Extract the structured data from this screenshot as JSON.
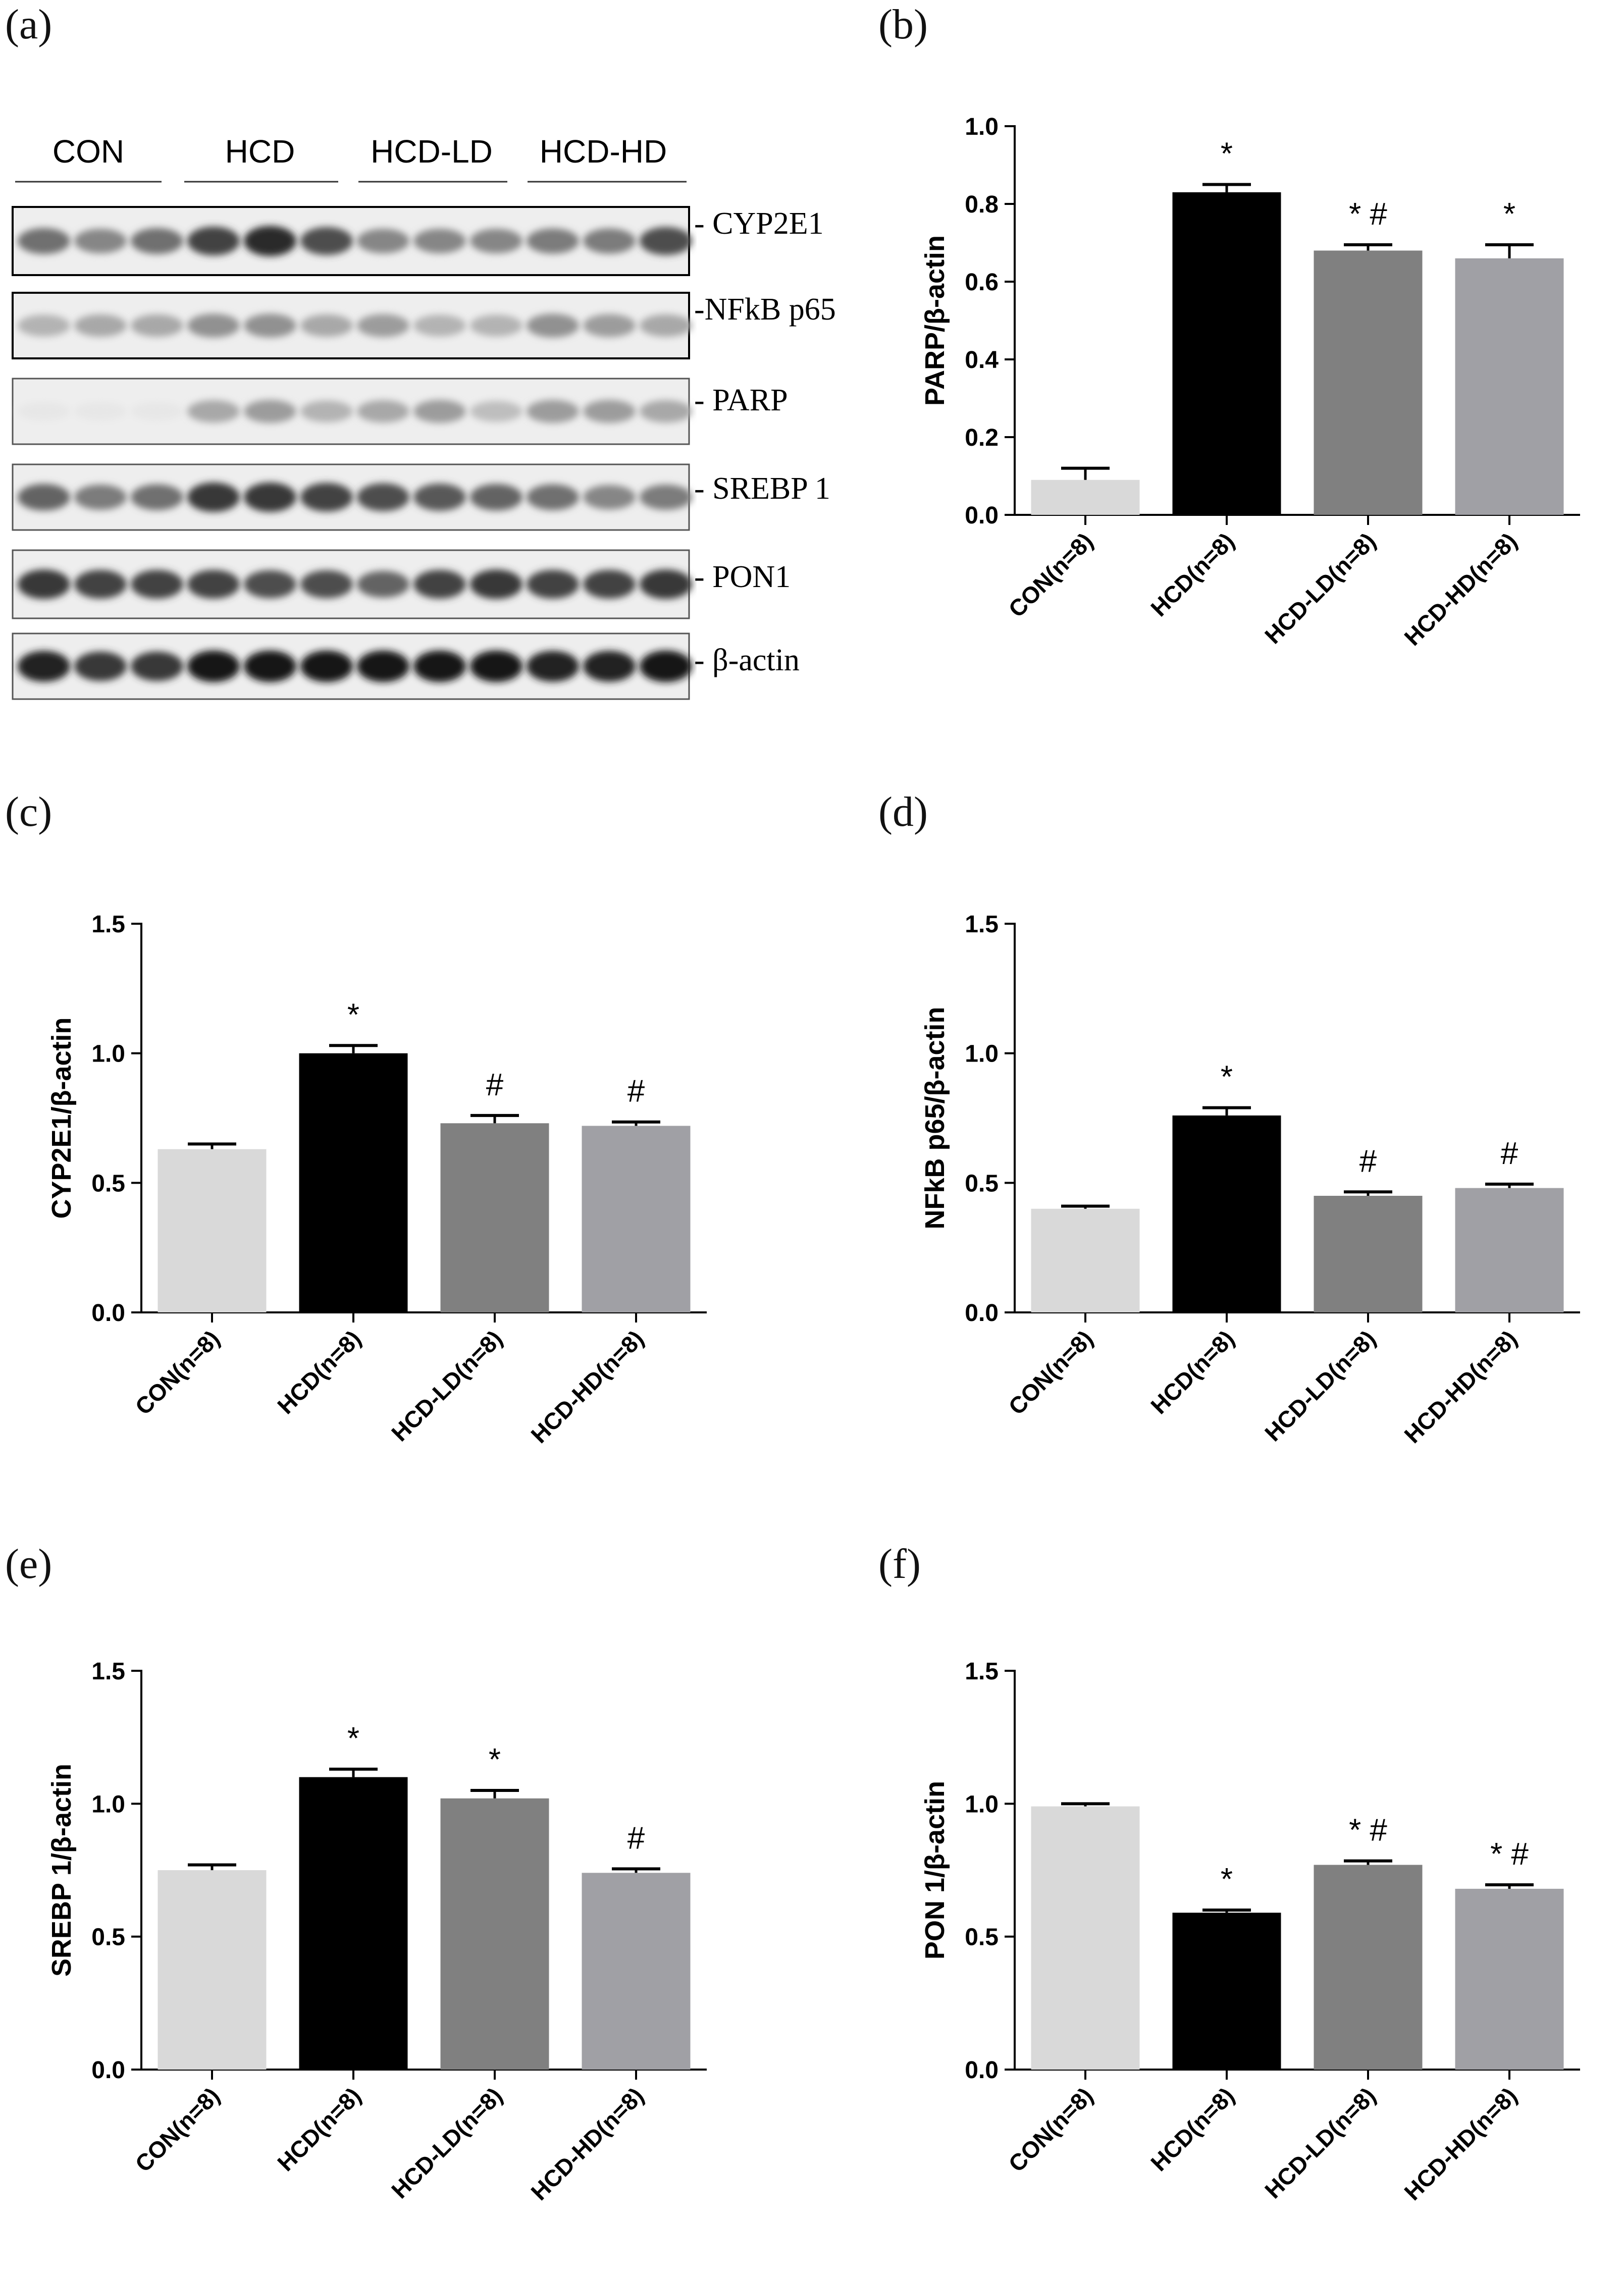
{
  "panel_labels": [
    "(a)",
    "(b)",
    "(c)",
    "(d)",
    "(e)",
    "(f)"
  ],
  "blot": {
    "groups": [
      "CON",
      "HCD",
      "HCD-LD",
      "HCD-HD"
    ],
    "proteins": [
      "- CYP2E1",
      "-NFkB p65",
      "- PARP",
      "- SREBP 1",
      "- PON1",
      "- β-actin"
    ]
  },
  "colors": {
    "CON": "#d9d9d9",
    "HCD": "#000000",
    "HCD-LD": "#808080",
    "HCD-HD": "#a0a0a5"
  },
  "chart_data": [
    {
      "panel": "(b)",
      "type": "bar",
      "categories": [
        "CON(n=8)",
        "HCD(n=8)",
        "HCD-LD(n=8)",
        "HCD-HD(n=8)"
      ],
      "values": [
        0.09,
        0.83,
        0.68,
        0.66
      ],
      "errors": [
        0.03,
        0.02,
        0.015,
        0.035
      ],
      "annotations": [
        "",
        "*",
        "* #",
        "*"
      ],
      "ylabel": "PARP/β-actin",
      "ylim": [
        0,
        1.0
      ],
      "yticks": [
        "0.0",
        "0.2",
        "0.4",
        "0.6",
        "0.8",
        "1.0"
      ]
    },
    {
      "panel": "(c)",
      "type": "bar",
      "categories": [
        "CON(n=8)",
        "HCD(n=8)",
        "HCD-LD(n=8)",
        "HCD-HD(n=8)"
      ],
      "values": [
        0.63,
        1.0,
        0.73,
        0.72
      ],
      "errors": [
        0.02,
        0.03,
        0.03,
        0.015
      ],
      "annotations": [
        "",
        "*",
        "#",
        "#"
      ],
      "ylabel": "CYP2E1/β-actin",
      "ylim": [
        0,
        1.5
      ],
      "yticks": [
        "0.0",
        "0.5",
        "1.0",
        "1.5"
      ]
    },
    {
      "panel": "(d)",
      "type": "bar",
      "categories": [
        "CON(n=8)",
        "HCD(n=8)",
        "HCD-LD(n=8)",
        "HCD-HD(n=8)"
      ],
      "values": [
        0.4,
        0.76,
        0.45,
        0.48
      ],
      "errors": [
        0.01,
        0.03,
        0.015,
        0.015
      ],
      "annotations": [
        "",
        "*",
        "#",
        "#"
      ],
      "ylabel": "NFkB p65/β-actin",
      "ylim": [
        0,
        1.5
      ],
      "yticks": [
        "0.0",
        "0.5",
        "1.0",
        "1.5"
      ]
    },
    {
      "panel": "(e)",
      "type": "bar",
      "categories": [
        "CON(n=8)",
        "HCD(n=8)",
        "HCD-LD(n=8)",
        "HCD-HD(n=8)"
      ],
      "values": [
        0.75,
        1.1,
        1.02,
        0.74
      ],
      "errors": [
        0.02,
        0.03,
        0.03,
        0.015
      ],
      "annotations": [
        "",
        "*",
        "*",
        "#"
      ],
      "ylabel": "SREBP 1/β-actin",
      "ylim": [
        0,
        1.5
      ],
      "yticks": [
        "0.0",
        "0.5",
        "1.0",
        "1.5"
      ]
    },
    {
      "panel": "(f)",
      "type": "bar",
      "categories": [
        "CON(n=8)",
        "HCD(n=8)",
        "HCD-LD(n=8)",
        "HCD-HD(n=8)"
      ],
      "values": [
        0.99,
        0.59,
        0.77,
        0.68
      ],
      "errors": [
        0.01,
        0.01,
        0.015,
        0.015
      ],
      "annotations": [
        "",
        "*",
        "* #",
        "* #"
      ],
      "ylabel": "PON 1/β-actin",
      "ylim": [
        0,
        1.5
      ],
      "yticks": [
        "0.0",
        "0.5",
        "1.0",
        "1.5"
      ]
    }
  ]
}
